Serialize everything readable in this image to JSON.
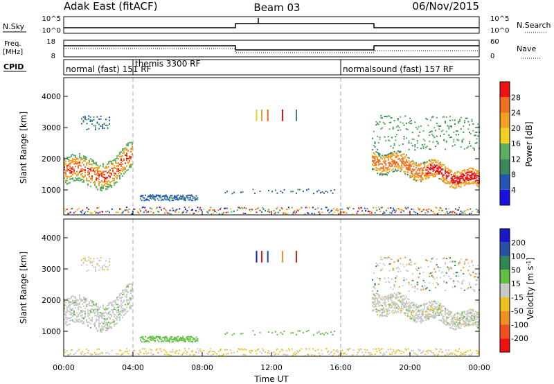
{
  "header": {
    "station": "Adak East (fitACF)",
    "beam": "Beam 03",
    "date": "06/Nov/2015"
  },
  "top_panels": {
    "nsky_label": "N.Sky",
    "nsearch_label": "N.Search",
    "nsky_ticks": [
      "10^5",
      "10^0"
    ],
    "nsky_right_ticks": [
      "10^5",
      "10^0"
    ],
    "freq_label_line1": "Freq.",
    "freq_label_line2": "[MHz]",
    "freq_ticks": [
      "18",
      "8"
    ],
    "nave_ticks": [
      "60",
      "0"
    ],
    "nave_label": "Nave",
    "cpid_label": "CPID"
  },
  "cpid_segments": [
    {
      "label": "normal (fast) 151 RF",
      "start_hour": 0,
      "end_hour": 4
    },
    {
      "label": "themis 3300 RF",
      "start_hour": 4,
      "end_hour": 16
    },
    {
      "label": "normalsound (fast) 157 RF",
      "start_hour": 16,
      "end_hour": 24
    }
  ],
  "x_axis": {
    "label": "Time UT",
    "ticks": [
      "00:00",
      "04:00",
      "08:00",
      "12:00",
      "16:00",
      "20:00",
      "00:00"
    ],
    "tick_hours": [
      0,
      4,
      8,
      12,
      16,
      20,
      24
    ]
  },
  "y_axis": {
    "label": "Slant Range [km]",
    "ticks": [
      "1000",
      "2000",
      "3000",
      "4000"
    ],
    "tick_values": [
      1000,
      2000,
      3000,
      4000
    ],
    "range": [
      200,
      4600
    ]
  },
  "power_colorbar": {
    "label": "Power [dB]",
    "ticks": [
      "4",
      "8",
      "12",
      "16",
      "20",
      "24",
      "28"
    ],
    "colors": [
      "#1a10e0",
      "#2456b8",
      "#3a8a5a",
      "#5ab060",
      "#f0d020",
      "#f0a020",
      "#f07020",
      "#f01010"
    ]
  },
  "velocity_colorbar": {
    "label": "Velocity [m s",
    "label_sup": "-1",
    "label_end": "]",
    "ticks": [
      "200",
      "100",
      "50",
      "15",
      "-15",
      "-50",
      "-100",
      "-200"
    ],
    "colors": [
      "#1818c8",
      "#2850a8",
      "#2e8a50",
      "#60c040",
      "#c8c8c8",
      "#f0c020",
      "#f09020",
      "#f05020",
      "#f01010"
    ]
  },
  "chart_data": {
    "type": "heatmap",
    "title": "Adak East (fitACF) Beam 03 06/Nov/2015",
    "xlabel": "Time UT",
    "ylabel": "Slant Range [km]",
    "xlim_hours": [
      0,
      24
    ],
    "ylim_km": [
      200,
      4600
    ],
    "mode_change_hours": [
      4,
      16
    ],
    "nsky_high_interval_hours": [
      10,
      18
    ],
    "freq_low_interval_hours": [
      10,
      18
    ],
    "scatter_regions_approx": [
      {
        "hours": [
          0.0,
          4.0
        ],
        "range_km": [
          1200,
          2300
        ],
        "power_db": 24,
        "velocity": "-15 to 15"
      },
      {
        "hours": [
          1.0,
          2.7
        ],
        "range_km": [
          2900,
          3400
        ],
        "power_db": 8,
        "velocity": "-15 to 15"
      },
      {
        "hours": [
          4.4,
          7.7
        ],
        "range_km": [
          650,
          850
        ],
        "power_db": 8,
        "velocity": "50"
      },
      {
        "hours": [
          9.3,
          15.6
        ],
        "range_km": [
          900,
          1050
        ],
        "power_db": 8,
        "velocity": "50"
      },
      {
        "hours": [
          11.0,
          13.7
        ],
        "range_km": [
          3200,
          3600
        ],
        "power_db": 16,
        "velocity": "mixed"
      },
      {
        "hours": [
          17.8,
          24.0
        ],
        "range_km": [
          900,
          2500
        ],
        "power_db": 28,
        "velocity": "-15 to 15"
      },
      {
        "hours": [
          18.3,
          24.0
        ],
        "range_km": [
          2500,
          3400
        ],
        "power_db": 12,
        "velocity": "mixed"
      }
    ]
  }
}
